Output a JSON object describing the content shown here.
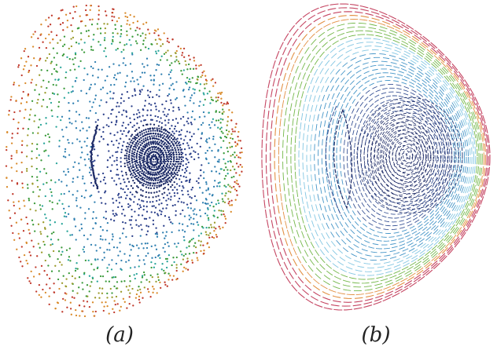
{
  "panels": [
    {
      "id": "a",
      "caption": "(a)",
      "style": "dots",
      "colors": {
        "core": "#1c2a66",
        "inner": "#2a3f8a",
        "mid": "#2f7fb0",
        "outer_teal": "#2aa59a",
        "outer_green": "#3a9a3a",
        "edge_olive": "#9a9a2a",
        "edge_orange": "#d98a2a",
        "edge_red": "#c0392b"
      }
    },
    {
      "id": "b",
      "caption": "(b)",
      "style": "dashes",
      "colors": {
        "core": "#1c2a66",
        "inner": "#2e4a8f",
        "mid": "#3b8fc4",
        "light": "#7cc3e0",
        "outer_green": "#6cb33f",
        "edge_yellow": "#d6c94a",
        "edge_orange": "#e08a3a",
        "edge_red": "#c23b5a"
      }
    }
  ]
}
